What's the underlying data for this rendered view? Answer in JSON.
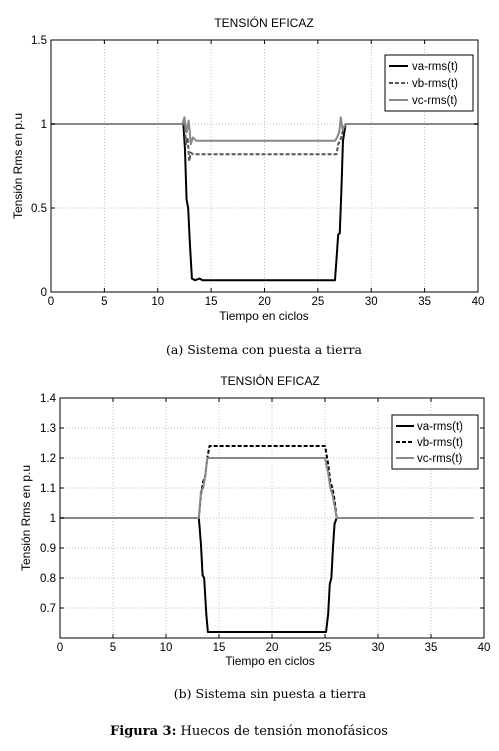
{
  "chart_data": [
    {
      "type": "line",
      "title": "TENSIÓN EFICAZ",
      "xlabel": "Tiempo en ciclos",
      "ylabel": "Tensión Rms en p.u",
      "xlim": [
        0,
        40
      ],
      "ylim": [
        0,
        1.5
      ],
      "xticks": [
        "0",
        "5",
        "10",
        "15",
        "20",
        "25",
        "30",
        "35",
        "40"
      ],
      "yticks": [
        "0",
        "0.5",
        "1",
        "1.5"
      ],
      "grid": true,
      "legend_position": "top-right",
      "caption": "(a) Sistema con puesta a tierra",
      "series": [
        {
          "name": "va-rms(t)",
          "color": "#000000",
          "dash": "solid",
          "x": [
            0,
            12.4,
            12.55,
            12.7,
            12.85,
            13.0,
            13.2,
            13.5,
            13.9,
            14.2,
            15,
            20,
            26.6,
            26.75,
            26.9,
            27.05,
            27.2,
            27.35,
            27.6,
            40
          ],
          "y": [
            1.0,
            1.0,
            0.85,
            0.55,
            0.5,
            0.3,
            0.08,
            0.07,
            0.08,
            0.07,
            0.07,
            0.07,
            0.07,
            0.2,
            0.34,
            0.35,
            0.6,
            0.9,
            1.0,
            1.0
          ]
        },
        {
          "name": "vb-rms(t)",
          "color": "#555555",
          "dash": "4,2",
          "x": [
            0,
            12.3,
            12.5,
            12.65,
            12.8,
            12.95,
            13.1,
            13.3,
            15,
            20,
            26.5,
            26.75,
            26.9,
            27.1,
            27.3,
            27.6,
            40
          ],
          "y": [
            1.0,
            1.0,
            1.0,
            0.88,
            0.92,
            0.78,
            0.83,
            0.82,
            0.82,
            0.82,
            0.82,
            0.82,
            0.88,
            0.9,
            0.95,
            1.0,
            1.0
          ]
        },
        {
          "name": "vc-rms(t)",
          "color": "#888888",
          "dash": "solid",
          "x": [
            0,
            12.3,
            12.5,
            12.7,
            12.9,
            13.1,
            13.3,
            13.6,
            15,
            20,
            26.6,
            26.8,
            27.0,
            27.15,
            27.3,
            27.6,
            40
          ],
          "y": [
            1.0,
            1.0,
            1.04,
            0.95,
            1.02,
            0.88,
            0.92,
            0.9,
            0.9,
            0.9,
            0.9,
            0.92,
            0.95,
            1.04,
            0.97,
            1.0,
            1.0
          ]
        }
      ]
    },
    {
      "type": "line",
      "title": "TENSIÓN EFICAZ",
      "xlabel": "Tiempo en ciclos",
      "ylabel": "Tensión Rms en p.u",
      "xlim": [
        0,
        40
      ],
      "ylim": [
        0.6,
        1.4
      ],
      "xticks": [
        "0",
        "5",
        "10",
        "15",
        "20",
        "25",
        "30",
        "35",
        "40"
      ],
      "yticks": [
        "0.7",
        "0.8",
        "0.9",
        "1",
        "1.1",
        "1.2",
        "1.3",
        "1.4"
      ],
      "grid": true,
      "legend_position": "top-right",
      "caption": "(b) Sistema sin puesta a tierra",
      "series": [
        {
          "name": "va-rms(t)",
          "color": "#000000",
          "dash": "solid",
          "x": [
            0,
            13.1,
            13.3,
            13.45,
            13.6,
            13.8,
            13.95,
            14.2,
            15,
            20,
            25.1,
            25.3,
            25.45,
            25.6,
            25.75,
            25.9,
            26.1,
            39
          ],
          "y": [
            1.0,
            1.0,
            0.91,
            0.81,
            0.8,
            0.68,
            0.62,
            0.62,
            0.62,
            0.62,
            0.62,
            0.68,
            0.78,
            0.8,
            0.9,
            0.98,
            1.0,
            1.0
          ]
        },
        {
          "name": "vb-rms(t)",
          "color": "#000000",
          "dash": "4,2",
          "x": [
            0,
            13.1,
            13.3,
            13.5,
            13.7,
            13.9,
            14.1,
            14.4,
            15,
            20,
            25.0,
            25.3,
            25.5,
            25.7,
            25.9,
            26.1,
            39
          ],
          "y": [
            1.0,
            1.0,
            1.08,
            1.12,
            1.14,
            1.2,
            1.24,
            1.24,
            1.24,
            1.24,
            1.24,
            1.18,
            1.12,
            1.1,
            1.06,
            1.0,
            1.0
          ]
        },
        {
          "name": "vc-rms(t)",
          "color": "#888888",
          "dash": "solid",
          "x": [
            0,
            13.1,
            13.3,
            13.5,
            13.7,
            13.9,
            14.2,
            15,
            20,
            25.0,
            25.3,
            25.5,
            25.7,
            25.9,
            26.1,
            39
          ],
          "y": [
            1.0,
            1.0,
            1.09,
            1.1,
            1.14,
            1.2,
            1.2,
            1.2,
            1.2,
            1.2,
            1.15,
            1.1,
            1.08,
            1.04,
            1.0,
            1.0
          ]
        }
      ]
    }
  ],
  "figure_caption": {
    "label": "Figura 3:",
    "text": " Huecos de tensión monofásicos"
  }
}
